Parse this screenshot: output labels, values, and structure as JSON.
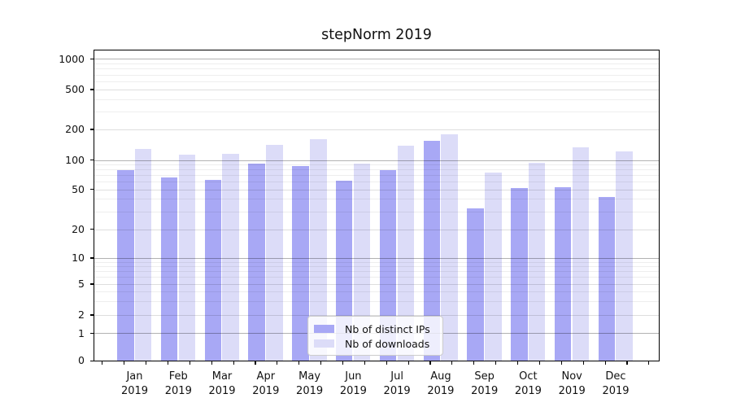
{
  "title": "stepNorm 2019",
  "chart_data": {
    "type": "bar",
    "title": "stepNorm 2019",
    "categories": [
      "Jan 2019",
      "Feb 2019",
      "Mar 2019",
      "Apr 2019",
      "May 2019",
      "Jun 2019",
      "Jul 2019",
      "Aug 2019",
      "Sep 2019",
      "Oct 2019",
      "Nov 2019",
      "Dec 2019"
    ],
    "series": [
      {
        "name": "Nb of distinct IPs",
        "color": "#a8a8f5",
        "values": [
          78,
          66,
          63,
          91,
          87,
          61,
          78,
          155,
          32,
          52,
          53,
          42
        ]
      },
      {
        "name": "Nb of downloads",
        "color": "#dcdcf8",
        "values": [
          128,
          112,
          115,
          140,
          160,
          92,
          138,
          180,
          74,
          93,
          134,
          122
        ]
      }
    ],
    "xlabel": "",
    "ylabel": "",
    "yscale": "symlog",
    "y_ticks": [
      0,
      1,
      2,
      5,
      10,
      20,
      50,
      100,
      200,
      500,
      1000
    ],
    "ylim": [
      0,
      1200
    ],
    "grid": true,
    "legend_position": "lower center"
  },
  "axis": {
    "y_tick_labels": [
      "0",
      "1",
      "2",
      "5",
      "10",
      "20",
      "50",
      "100",
      "200",
      "500",
      "1000"
    ],
    "x_tick_labels": [
      {
        "month": "Jan",
        "year": "2019"
      },
      {
        "month": "Feb",
        "year": "2019"
      },
      {
        "month": "Mar",
        "year": "2019"
      },
      {
        "month": "Apr",
        "year": "2019"
      },
      {
        "month": "May",
        "year": "2019"
      },
      {
        "month": "Jun",
        "year": "2019"
      },
      {
        "month": "Jul",
        "year": "2019"
      },
      {
        "month": "Aug",
        "year": "2019"
      },
      {
        "month": "Sep",
        "year": "2019"
      },
      {
        "month": "Oct",
        "year": "2019"
      },
      {
        "month": "Nov",
        "year": "2019"
      },
      {
        "month": "Dec",
        "year": "2019"
      }
    ]
  },
  "legend": {
    "items": [
      {
        "label": "Nb of distinct IPs",
        "color": "#a8a8f5"
      },
      {
        "label": "Nb of downloads",
        "color": "#dcdcf8"
      }
    ]
  },
  "colors": {
    "grid_major": "rgba(0,0,0,0.30)",
    "grid_sub": "rgba(0,0,0,0.13)",
    "grid_minor": "rgba(0,0,0,0.065)",
    "spine": "#000000",
    "text": "#111111",
    "background": "#ffffff"
  }
}
